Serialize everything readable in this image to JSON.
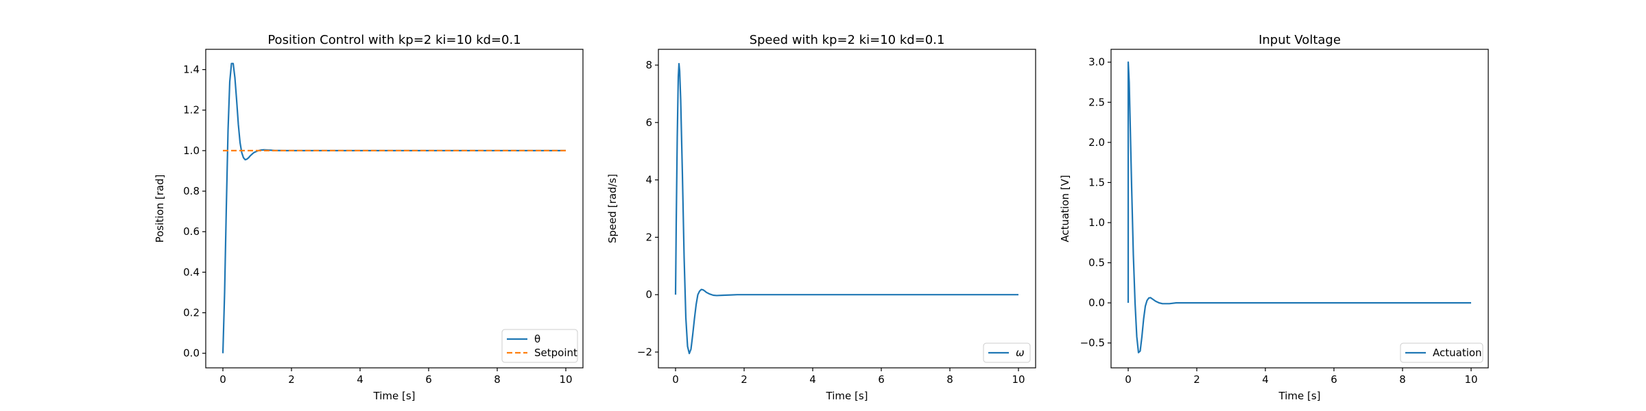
{
  "figure": {
    "background": "#ffffff"
  },
  "chart_data": [
    {
      "type": "line",
      "title": "Position Control with kp=2 ki=10 kd=0.1",
      "xlabel": "Time [s]",
      "ylabel": "Position [rad]",
      "xlim": [
        -0.5,
        10.5
      ],
      "ylim": [
        -0.072,
        1.5
      ],
      "xticks": [
        0,
        2,
        4,
        6,
        8,
        10
      ],
      "yticks": [
        0.0,
        0.2,
        0.4,
        0.6,
        0.8,
        1.0,
        1.2,
        1.4
      ],
      "xtick_labels": [
        "0",
        "2",
        "4",
        "6",
        "8",
        "10"
      ],
      "ytick_labels": [
        "0.0",
        "0.2",
        "0.4",
        "0.6",
        "0.8",
        "1.0",
        "1.2",
        "1.4"
      ],
      "grid": false,
      "legend": {
        "placement": "lower-right"
      },
      "series": [
        {
          "name": "θ",
          "color": "#1f77b4",
          "style": "solid",
          "x": [
            0,
            0.05,
            0.1,
            0.15,
            0.2,
            0.25,
            0.3,
            0.35,
            0.4,
            0.45,
            0.5,
            0.55,
            0.6,
            0.65,
            0.7,
            0.75,
            0.8,
            0.9,
            1.0,
            1.1,
            1.2,
            1.3,
            1.5,
            1.8,
            2.2,
            3,
            4,
            5,
            6,
            7,
            8,
            9,
            10
          ],
          "y": [
            0,
            0.3,
            0.72,
            1.1,
            1.34,
            1.43,
            1.43,
            1.36,
            1.25,
            1.13,
            1.04,
            0.99,
            0.965,
            0.955,
            0.958,
            0.965,
            0.975,
            0.99,
            0.998,
            1.003,
            1.004,
            1.003,
            1.001,
            1.0,
            1.0,
            1.0,
            1.0,
            1.0,
            1.0,
            1.0,
            1.0,
            1.0,
            1.0
          ]
        },
        {
          "name": "Setpoint",
          "color": "#ff7f0e",
          "style": "dashed",
          "x": [
            0,
            10
          ],
          "y": [
            1.0,
            1.0
          ]
        }
      ]
    },
    {
      "type": "line",
      "title": "Speed with kp=2 ki=10 kd=0.1",
      "xlabel": "Time [s]",
      "ylabel": "Speed [rad/s]",
      "xlim": [
        -0.5,
        10.5
      ],
      "ylim": [
        -2.55,
        8.55
      ],
      "xticks": [
        0,
        2,
        4,
        6,
        8,
        10
      ],
      "yticks": [
        -2,
        0,
        2,
        4,
        6,
        8
      ],
      "xtick_labels": [
        "0",
        "2",
        "4",
        "6",
        "8",
        "10"
      ],
      "ytick_labels": [
        "−2",
        "0",
        "2",
        "4",
        "6",
        "8"
      ],
      "grid": false,
      "legend": {
        "placement": "lower-right"
      },
      "series": [
        {
          "name": "ω",
          "color": "#1f77b4",
          "style": "solid",
          "x": [
            0,
            0.02,
            0.05,
            0.08,
            0.1,
            0.12,
            0.15,
            0.2,
            0.25,
            0.3,
            0.35,
            0.4,
            0.45,
            0.5,
            0.55,
            0.6,
            0.65,
            0.7,
            0.75,
            0.8,
            0.85,
            0.9,
            1.0,
            1.1,
            1.2,
            1.4,
            1.6,
            1.8,
            2.0,
            2.5,
            3,
            4,
            5,
            6,
            7,
            8,
            9,
            10
          ],
          "y": [
            0,
            2.5,
            5.5,
            7.6,
            8.05,
            7.8,
            6.8,
            4.2,
            1.3,
            -0.8,
            -1.8,
            -2.05,
            -1.9,
            -1.4,
            -0.85,
            -0.35,
            0.0,
            0.12,
            0.18,
            0.17,
            0.13,
            0.08,
            0.02,
            -0.02,
            -0.03,
            -0.02,
            -0.01,
            0.0,
            0.0,
            0.0,
            0.0,
            0.0,
            0.0,
            0.0,
            0.0,
            0.0,
            0.0,
            0.0
          ]
        }
      ]
    },
    {
      "type": "line",
      "title": "Input Voltage",
      "xlabel": "Time [s]",
      "ylabel": "Actuation [V]",
      "xlim": [
        -0.5,
        10.5
      ],
      "ylim": [
        -0.81,
        3.16
      ],
      "xticks": [
        0,
        2,
        4,
        6,
        8,
        10
      ],
      "yticks": [
        -0.5,
        0.0,
        0.5,
        1.0,
        1.5,
        2.0,
        2.5,
        3.0
      ],
      "xtick_labels": [
        "0",
        "2",
        "4",
        "6",
        "8",
        "10"
      ],
      "ytick_labels": [
        "−0.5",
        "0.0",
        "0.5",
        "1.0",
        "1.5",
        "2.0",
        "2.5",
        "3.0"
      ],
      "grid": false,
      "legend": {
        "placement": "lower-right"
      },
      "series": [
        {
          "name": "Actuation",
          "color": "#1f77b4",
          "style": "solid",
          "x": [
            0,
            0.001,
            0.03,
            0.06,
            0.1,
            0.15,
            0.2,
            0.25,
            0.3,
            0.35,
            0.4,
            0.45,
            0.5,
            0.55,
            0.6,
            0.65,
            0.7,
            0.75,
            0.8,
            0.9,
            1.0,
            1.2,
            1.4,
            1.7,
            2.0,
            3,
            4,
            5,
            6,
            7,
            8,
            9,
            10
          ],
          "y": [
            0,
            3.0,
            2.75,
            2.2,
            1.45,
            0.6,
            0.0,
            -0.42,
            -0.62,
            -0.6,
            -0.42,
            -0.2,
            -0.04,
            0.03,
            0.06,
            0.065,
            0.05,
            0.035,
            0.02,
            0.0,
            -0.01,
            -0.01,
            0.0,
            0.0,
            0.0,
            0.0,
            0.0,
            0.0,
            0.0,
            0.0,
            0.0,
            0.0,
            0.0
          ]
        }
      ]
    }
  ]
}
